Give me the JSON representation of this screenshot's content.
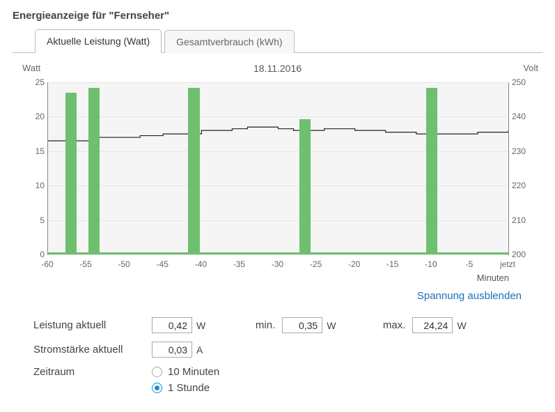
{
  "title": "Energieanzeige für \"Fernseher\"",
  "tabs": [
    {
      "label": "Aktuelle Leistung (Watt)",
      "active": true
    },
    {
      "label": "Gesamtverbrauch (kWh)",
      "active": false
    }
  ],
  "chart": {
    "date_title": "18.11.2016",
    "left_axis": {
      "label": "Watt",
      "min": 0,
      "max": 25,
      "step": 5,
      "ticks": [
        0,
        5,
        10,
        15,
        20,
        25
      ]
    },
    "right_axis": {
      "label": "Volt",
      "min": 200,
      "max": 250,
      "step": 10,
      "ticks": [
        200,
        210,
        220,
        230,
        240,
        250
      ]
    },
    "x_axis": {
      "min": -60,
      "max": 0,
      "step": 5,
      "label": "Minuten",
      "last_tick_label": "jetzt"
    },
    "bars": [
      {
        "x": -57.0,
        "width": 1.5,
        "value": 23.5
      },
      {
        "x": -54.0,
        "width": 1.5,
        "value": 24.2
      },
      {
        "x": -41.0,
        "width": 1.5,
        "value": 24.2
      },
      {
        "x": -26.5,
        "width": 1.5,
        "value": 19.6
      },
      {
        "x": -10.0,
        "width": 1.5,
        "value": 24.2
      }
    ],
    "baseline_value": 0.4,
    "voltage_series": [
      {
        "x": -60,
        "v": 233
      },
      {
        "x": -56,
        "v": 233
      },
      {
        "x": -54,
        "v": 234
      },
      {
        "x": -50,
        "v": 234
      },
      {
        "x": -48,
        "v": 234.5
      },
      {
        "x": -45,
        "v": 235
      },
      {
        "x": -42,
        "v": 235
      },
      {
        "x": -40,
        "v": 236
      },
      {
        "x": -36,
        "v": 236.5
      },
      {
        "x": -34,
        "v": 237
      },
      {
        "x": -30,
        "v": 236.5
      },
      {
        "x": -28,
        "v": 236
      },
      {
        "x": -24,
        "v": 236.5
      },
      {
        "x": -20,
        "v": 236
      },
      {
        "x": -16,
        "v": 235.5
      },
      {
        "x": -12,
        "v": 235
      },
      {
        "x": -8,
        "v": 235
      },
      {
        "x": -4,
        "v": 235.5
      },
      {
        "x": 0,
        "v": 236
      }
    ],
    "colors": {
      "bar": "#6ebf6e",
      "plot_bg": "#f5f5f5",
      "grid": "#e6e6e6",
      "axis": "#888888",
      "line": "#222222",
      "text": "#666666"
    }
  },
  "link_text": "Spannung ausblenden",
  "readings": {
    "current_power": {
      "label": "Leistung aktuell",
      "value": "0,42",
      "unit": "W"
    },
    "min": {
      "label": "min.",
      "value": "0,35",
      "unit": "W"
    },
    "max": {
      "label": "max.",
      "value": "24,24",
      "unit": "W"
    },
    "current_amperage": {
      "label": "Stromstärke aktuell",
      "value": "0,03",
      "unit": "A"
    },
    "period": {
      "label": "Zeitraum",
      "options": [
        {
          "label": "10 Minuten",
          "checked": false
        },
        {
          "label": "1 Stunde",
          "checked": true
        }
      ]
    }
  }
}
